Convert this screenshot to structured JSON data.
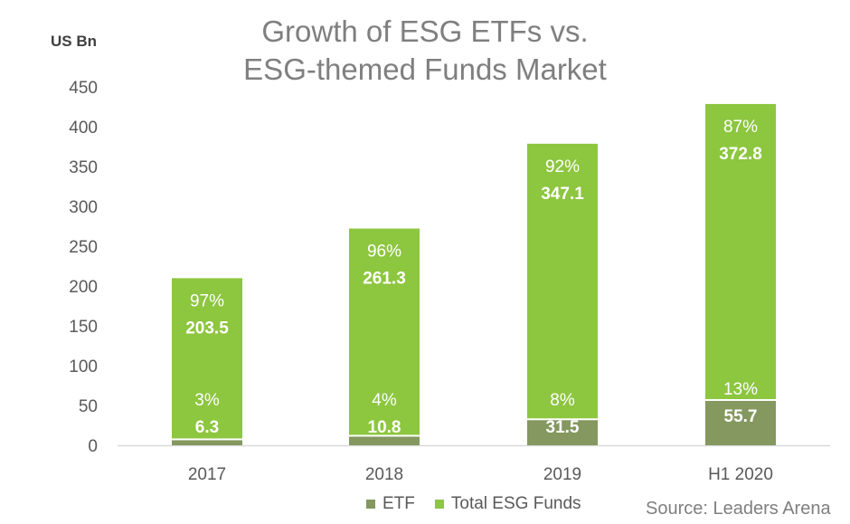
{
  "chart_data": {
    "type": "bar",
    "stacked": true,
    "title": "Growth of ESG ETFs vs. ESG-themed Funds Market",
    "title_lines": [
      "Growth of ESG ETFs vs.",
      "ESG-themed Funds Market"
    ],
    "ylabel": "US Bn",
    "xlabel": "",
    "ylim": [
      0,
      450
    ],
    "yticks": [
      0,
      50,
      100,
      150,
      200,
      250,
      300,
      350,
      400,
      450
    ],
    "grid": false,
    "legend_position": "bottom",
    "categories": [
      "2017",
      "2018",
      "2019",
      "H1 2020"
    ],
    "series": [
      {
        "name": "ETF",
        "color": "#84985f",
        "values": [
          6.3,
          10.8,
          31.5,
          55.7
        ],
        "labels": [
          "6.3",
          "10.8",
          "31.5",
          "55.7"
        ],
        "percent_labels": [
          "3%",
          "4%",
          "8%",
          "13%"
        ]
      },
      {
        "name": "Total ESG Funds",
        "color": "#8dc63f",
        "values": [
          203.5,
          261.3,
          347.1,
          372.8
        ],
        "labels": [
          "203.5",
          "261.3",
          "347.1",
          "372.8"
        ],
        "percent_labels": [
          "97%",
          "96%",
          "92%",
          "87%"
        ]
      }
    ],
    "source": "Source: Leaders Arena"
  }
}
